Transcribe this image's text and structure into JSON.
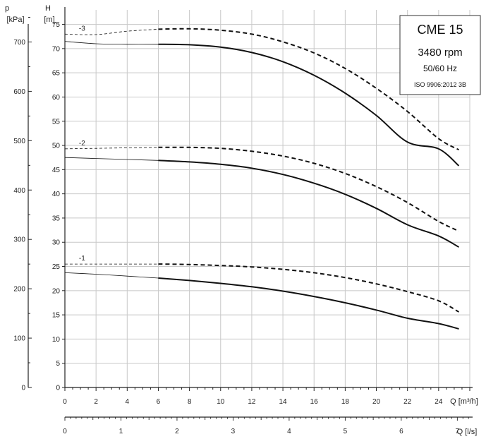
{
  "chart_data": {
    "type": "line",
    "title": "",
    "info_box": [
      "CME 15",
      "3480 rpm",
      "50/60 Hz",
      "ISO 9906:2012 3B"
    ],
    "axes": {
      "x_primary": {
        "unit_label": "Q [m³/h]",
        "range": [
          0,
          26
        ],
        "ticks": [
          0,
          2,
          4,
          6,
          8,
          10,
          12,
          14,
          16,
          18,
          20,
          22,
          24
        ]
      },
      "x_secondary": {
        "unit_label": "Q [l/s]",
        "range": [
          0,
          7.22
        ],
        "ticks": [
          0,
          1,
          2,
          3,
          4,
          5,
          6,
          7
        ]
      },
      "y_head": {
        "unit_label": "[m]",
        "symbol": "H",
        "range": [
          0,
          78
        ],
        "ticks": [
          0,
          5,
          10,
          15,
          20,
          25,
          30,
          35,
          40,
          45,
          50,
          55,
          60,
          65,
          70,
          75
        ]
      },
      "y_pressure": {
        "unit_label": "[kPa]",
        "symbol": "p",
        "range": [
          0,
          765
        ],
        "ticks": [
          0,
          100,
          200,
          300,
          400,
          500,
          600,
          700
        ]
      }
    },
    "grid": true,
    "series": [
      {
        "name": "-3",
        "style": "solid",
        "x": [
          0,
          2,
          4,
          6,
          8,
          10,
          12,
          14,
          16,
          18,
          20,
          22,
          24,
          25.3
        ],
        "y": [
          71.5,
          71.0,
          70.9,
          70.9,
          70.8,
          70.3,
          69.2,
          67.3,
          64.5,
          60.8,
          56.2,
          50.7,
          49.3,
          45.8
        ]
      },
      {
        "name": "-3",
        "style": "dashed",
        "x": [
          0,
          2,
          4,
          6,
          8,
          10,
          12,
          14,
          16,
          18,
          20,
          22,
          24,
          25.3
        ],
        "y": [
          73.0,
          72.9,
          73.6,
          74.0,
          74.1,
          73.8,
          73.0,
          71.4,
          69.1,
          65.9,
          61.8,
          57.0,
          51.4,
          49.1
        ]
      },
      {
        "name": "-2",
        "style": "solid",
        "x": [
          0,
          2,
          4,
          6,
          8,
          10,
          12,
          14,
          16,
          18,
          20,
          22,
          24,
          25.3
        ],
        "y": [
          47.5,
          47.3,
          47.1,
          46.9,
          46.6,
          46.1,
          45.3,
          44.0,
          42.2,
          39.9,
          37.0,
          33.6,
          31.3,
          29.0
        ]
      },
      {
        "name": "-2",
        "style": "dashed",
        "x": [
          0,
          2,
          4,
          6,
          8,
          10,
          12,
          14,
          16,
          18,
          20,
          22,
          24,
          25.3
        ],
        "y": [
          49.3,
          49.4,
          49.5,
          49.6,
          49.6,
          49.4,
          48.8,
          47.8,
          46.3,
          44.2,
          41.5,
          38.2,
          34.3,
          32.3
        ]
      },
      {
        "name": "-1",
        "style": "solid",
        "x": [
          0,
          2,
          4,
          6,
          8,
          10,
          12,
          14,
          16,
          18,
          20,
          22,
          24,
          25.3
        ],
        "y": [
          23.7,
          23.4,
          23.0,
          22.6,
          22.1,
          21.5,
          20.8,
          19.9,
          18.8,
          17.5,
          16.0,
          14.3,
          13.2,
          12.1
        ]
      },
      {
        "name": "-1",
        "style": "dashed",
        "x": [
          0,
          2,
          4,
          6,
          8,
          10,
          12,
          14,
          16,
          18,
          20,
          22,
          24,
          25.3
        ],
        "y": [
          25.5,
          25.5,
          25.5,
          25.5,
          25.4,
          25.2,
          24.9,
          24.4,
          23.7,
          22.7,
          21.4,
          19.8,
          17.9,
          15.6
        ]
      }
    ],
    "x_bold_start": 6,
    "colors": {
      "line": "#111111",
      "grid": "#c8c8c8",
      "axis": "#222222",
      "box_border": "#333333"
    }
  }
}
